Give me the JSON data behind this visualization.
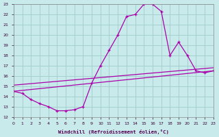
{
  "xlabel": "Windchill (Refroidissement éolien,°C)",
  "bg_color": "#c8eaea",
  "grid_color": "#a0cccc",
  "line_color": "#aa00aa",
  "xmin": 0,
  "xmax": 23,
  "ymin": 12,
  "ymax": 23,
  "xticks": [
    0,
    1,
    2,
    3,
    4,
    5,
    6,
    7,
    8,
    9,
    10,
    11,
    12,
    13,
    14,
    15,
    16,
    17,
    18,
    19,
    20,
    21,
    22,
    23
  ],
  "yticks": [
    12,
    13,
    14,
    15,
    16,
    17,
    18,
    19,
    20,
    21,
    22,
    23
  ],
  "curve1_x": [
    0,
    1,
    2,
    3,
    4,
    5,
    6,
    7,
    8,
    9,
    10,
    11,
    12,
    13,
    14,
    15,
    16,
    17,
    18,
    19,
    20,
    21,
    22,
    23
  ],
  "curve1_y": [
    14.5,
    14.3,
    13.7,
    13.3,
    13.0,
    12.6,
    12.6,
    12.7,
    13.0,
    15.3,
    17.0,
    18.5,
    20.0,
    21.8,
    22.0,
    23.0,
    23.0,
    22.3,
    18.0,
    19.3,
    18.0,
    16.5,
    16.3,
    16.5
  ],
  "line1_x": [
    0,
    23
  ],
  "line1_y": [
    14.5,
    16.5
  ],
  "line2_x": [
    0,
    23
  ],
  "line2_y": [
    15.1,
    16.8
  ]
}
